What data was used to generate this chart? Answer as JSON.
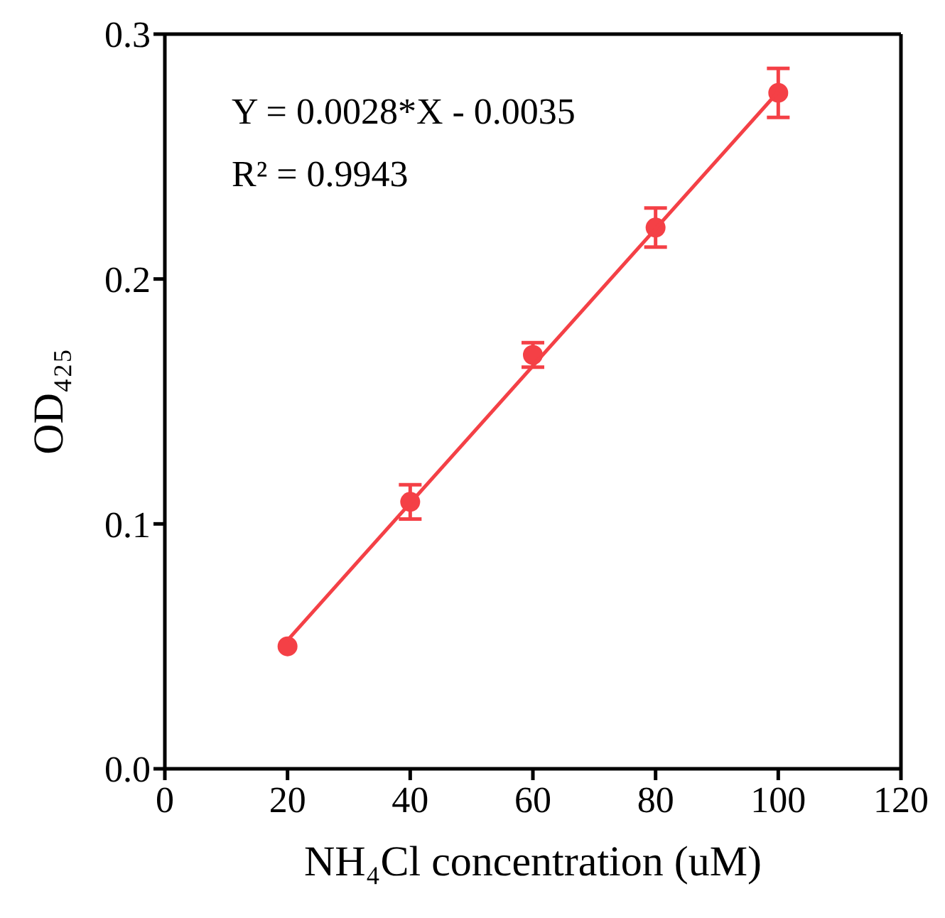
{
  "chart_data": {
    "type": "scatter",
    "xlabel": "NH₄Cl concentration (uM)",
    "ylabel": "OD₄₂₅",
    "annotations": [
      "Y = 0.0028*X - 0.0035",
      "R² = 0.9943"
    ],
    "xlim": [
      0,
      120
    ],
    "xticks": [
      0,
      20,
      40,
      60,
      80,
      100,
      120
    ],
    "ylim": [
      0,
      0.3
    ],
    "yticks": [
      {
        "value": 0,
        "label": "0.0"
      },
      0.1,
      0.2,
      0.3
    ],
    "marker": "circle",
    "series": [
      {
        "color": "#f44046",
        "x": [
          20,
          40,
          60,
          80,
          100
        ],
        "values": [
          0.05,
          0.109,
          0.169,
          0.221,
          0.276
        ],
        "errors": [
          null,
          0.007,
          0.005,
          0.008,
          0.01
        ]
      },
      {
        "type": "line",
        "color": "#f44046",
        "x": [
          20,
          100
        ],
        "values": [
          0.0525,
          0.2765
        ],
        "line_style": "solid",
        "marker": "none"
      }
    ]
  }
}
